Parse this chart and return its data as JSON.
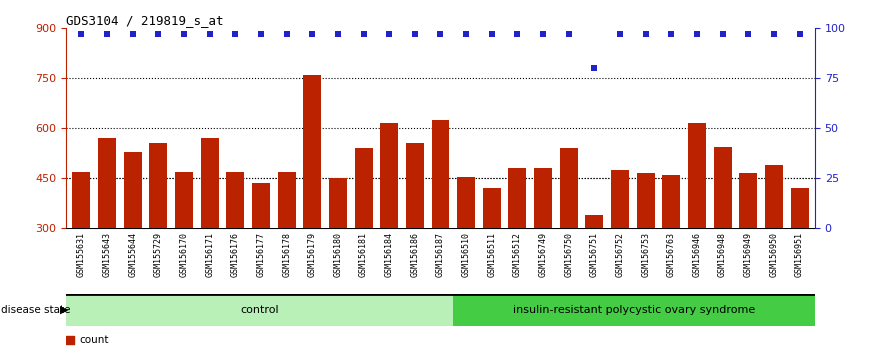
{
  "title": "GDS3104 / 219819_s_at",
  "samples": [
    "GSM155631",
    "GSM155643",
    "GSM155644",
    "GSM155729",
    "GSM156170",
    "GSM156171",
    "GSM156176",
    "GSM156177",
    "GSM156178",
    "GSM156179",
    "GSM156180",
    "GSM156181",
    "GSM156184",
    "GSM156186",
    "GSM156187",
    "GSM156510",
    "GSM156511",
    "GSM156512",
    "GSM156749",
    "GSM156750",
    "GSM156751",
    "GSM156752",
    "GSM156753",
    "GSM156763",
    "GSM156946",
    "GSM156948",
    "GSM156949",
    "GSM156950",
    "GSM156951"
  ],
  "counts": [
    470,
    570,
    530,
    555,
    470,
    570,
    470,
    435,
    470,
    760,
    450,
    540,
    615,
    555,
    625,
    455,
    420,
    480,
    480,
    540,
    340,
    475,
    465,
    460,
    615,
    545,
    465,
    490,
    420
  ],
  "percentile_ranks": [
    97,
    97,
    97,
    97,
    97,
    97,
    97,
    97,
    97,
    97,
    97,
    97,
    97,
    97,
    97,
    97,
    97,
    97,
    97,
    97,
    80,
    97,
    97,
    97,
    97,
    97,
    97,
    97,
    97
  ],
  "control_count": 15,
  "group_labels": [
    "control",
    "insulin-resistant polycystic ovary syndrome"
  ],
  "bar_color": "#bb2200",
  "dot_color": "#2222cc",
  "ylim_left": [
    300,
    900
  ],
  "ylim_right": [
    0,
    100
  ],
  "yticks_left": [
    300,
    450,
    600,
    750,
    900
  ],
  "yticks_right": [
    0,
    25,
    50,
    75,
    100
  ],
  "grid_values": [
    450,
    600,
    750
  ],
  "background_color": "#ffffff",
  "ticklabel_bg": "#d8d8d8",
  "control_color": "#b8f0b8",
  "insulin_color": "#44cc44"
}
